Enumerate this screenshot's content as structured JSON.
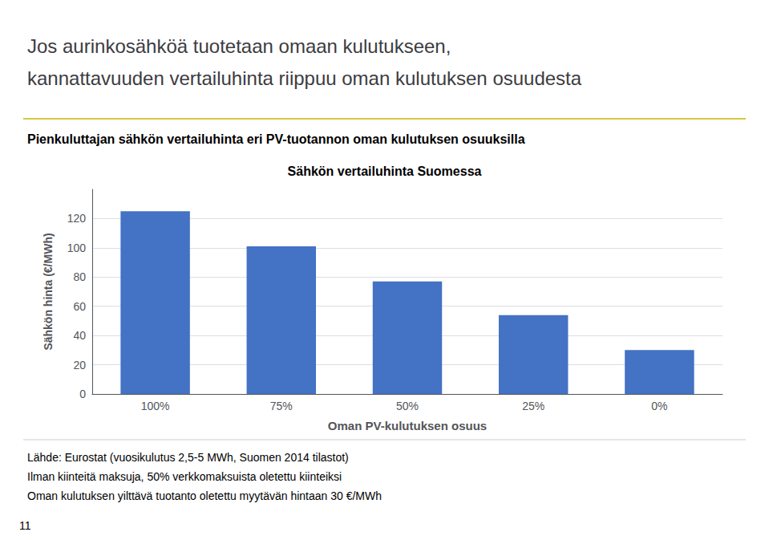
{
  "chart_data": {
    "type": "bar",
    "heading": [
      "Jos aurinkosähköä tuotetaan omaan kulutukseen,",
      "kannattavuuden vertailuhinta riippuu oman kulutuksen osuudesta"
    ],
    "subtitle": "Pienkuluttajan sähkön vertailuhinta eri PV-tuotannon oman kulutuksen osuuksilla",
    "title": "Sähkön vertailuhinta Suomessa",
    "categories": [
      "100%",
      "75%",
      "50%",
      "25%",
      "0%"
    ],
    "values": [
      125,
      101,
      77,
      54,
      30
    ],
    "color": "#4472C4",
    "xlabel": "Oman PV-kulutuksen osuus",
    "ylabel": "Sähkön hinta (€/MWh)",
    "ylim": [
      0,
      140
    ],
    "yticks": [
      0,
      20,
      40,
      60,
      80,
      100,
      120
    ],
    "grid": true,
    "annotations": [
      "Lähde: Eurostat (vuosikulutus 2,5-5 MWh, Suomen 2014 tilastot)",
      "Ilman kiinteitä maksuja, 50% verkkomaksuista oletettu kiinteiksi",
      "Oman kulutuksen yilttävä tuotanto oletettu myytävän hintaan 30 €/MWh",
      "11"
    ]
  }
}
